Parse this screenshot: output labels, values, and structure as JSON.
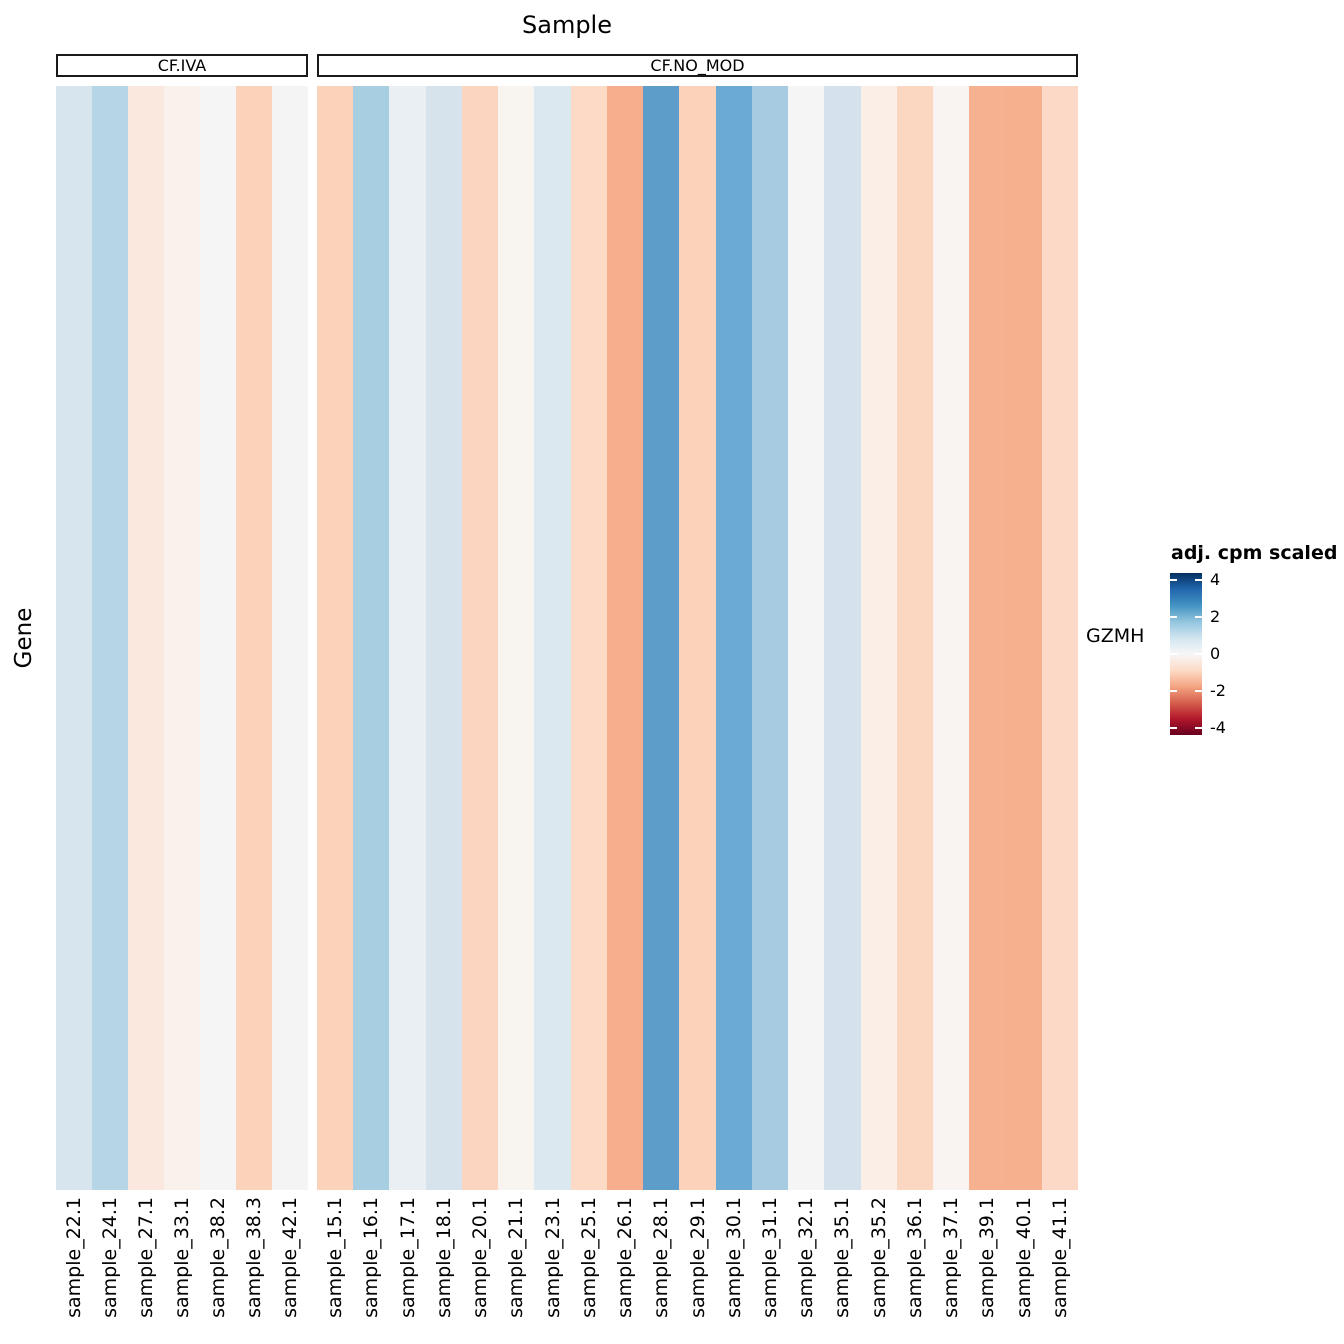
{
  "title": "Sample",
  "y_axis": {
    "label": "Gene"
  },
  "row_label": "GZMH",
  "legend": {
    "title": "adj. cpm scaled",
    "vmin": -4.35,
    "vmax": 4.35,
    "ticks": [
      {
        "label": "4",
        "value": 4
      },
      {
        "label": "2",
        "value": 2
      },
      {
        "label": "0",
        "value": 0
      },
      {
        "label": "-2",
        "value": -2
      },
      {
        "label": "-4",
        "value": -4
      }
    ],
    "gradient_stops_top_to_bottom": [
      "#053061",
      "#2166AC",
      "#4393C3",
      "#92C5DE",
      "#D1E5F0",
      "#F7F7F7",
      "#FDDBC7",
      "#F4A582",
      "#D6604D",
      "#B2182B",
      "#67001F"
    ]
  },
  "chart_data": {
    "type": "heatmap",
    "title": "Sample",
    "xlabel": "Sample",
    "ylabel": "Gene",
    "rows": [
      "GZMH"
    ],
    "legend_title": "adj. cpm scaled",
    "palette": "RdBu (blue = high, red = low)",
    "value_range": [
      -4.35,
      4.35
    ],
    "groups": [
      {
        "name": "CF.IVA",
        "samples": [
          "sample_22.1",
          "sample_24.1",
          "sample_27.1",
          "sample_33.1",
          "sample_38.2",
          "sample_38.3",
          "sample_42.1"
        ],
        "values": [
          0.8,
          1.4,
          -0.45,
          -0.15,
          0.0,
          -1.0,
          0.0
        ],
        "colors": [
          "#D7E5EF",
          "#B6D5E6",
          "#FAE7DD",
          "#F8F1EC",
          "#F6F5F5",
          "#FBD2BA",
          "#F5F4F4"
        ]
      },
      {
        "name": "CF.NO_MOD",
        "samples": [
          "sample_15.1",
          "sample_16.1",
          "sample_17.1",
          "sample_18.1",
          "sample_20.1",
          "sample_21.1",
          "sample_23.1",
          "sample_25.1",
          "sample_26.1",
          "sample_28.1",
          "sample_29.1",
          "sample_30.1",
          "sample_31.1",
          "sample_32.1",
          "sample_35.1",
          "sample_35.2",
          "sample_36.1",
          "sample_37.1",
          "sample_39.1",
          "sample_40.1",
          "sample_41.1"
        ],
        "values": [
          -1.0,
          1.55,
          0.4,
          0.85,
          -0.95,
          -0.1,
          0.7,
          -0.8,
          -1.75,
          2.7,
          -1.0,
          2.45,
          1.55,
          0.0,
          0.85,
          -0.3,
          -0.9,
          -0.1,
          -1.7,
          -1.7,
          -0.8
        ],
        "colors": [
          "#FBD3BB",
          "#A8CEE2",
          "#EAEFF3",
          "#D6E3ED",
          "#FBD5BF",
          "#F8F4F0",
          "#DCE8F0",
          "#FCDAC6",
          "#F6AE8C",
          "#5C9DC9",
          "#FCD2BA",
          "#6BAAD2",
          "#A7CCE1",
          "#F6F5F5",
          "#D5E2ED",
          "#FAEEE6",
          "#FBD7C1",
          "#F9F4F1",
          "#F6B190",
          "#F6B08E",
          "#FBD9C6"
        ]
      }
    ]
  }
}
